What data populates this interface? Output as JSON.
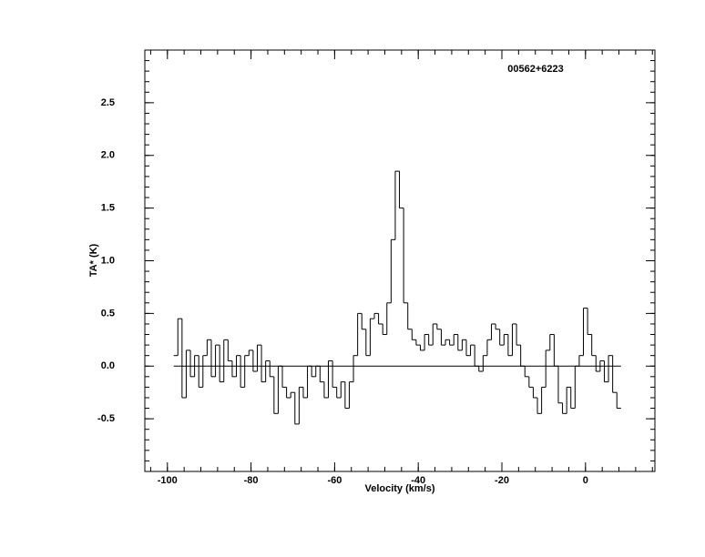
{
  "chart_data": {
    "type": "step",
    "title": "00562+6223",
    "xlabel": "Velocity (km/s)",
    "ylabel": "TA* (K)",
    "x": [
      -98,
      -97,
      -96,
      -95,
      -94,
      -93,
      -92,
      -91,
      -90,
      -89,
      -88,
      -87,
      -86,
      -85,
      -84,
      -83,
      -82,
      -81,
      -80,
      -79,
      -78,
      -77,
      -76,
      -75,
      -74,
      -73,
      -72,
      -71,
      -70,
      -69,
      -68,
      -67,
      -66,
      -65,
      -64,
      -63,
      -62,
      -61,
      -60,
      -59,
      -58,
      -57,
      -56,
      -55,
      -54,
      -53,
      -52,
      -51,
      -50,
      -49,
      -48,
      -47,
      -46,
      -45,
      -44,
      -43,
      -42,
      -41,
      -40,
      -39,
      -38,
      -37,
      -36,
      -35,
      -34,
      -33,
      -32,
      -31,
      -30,
      -29,
      -28,
      -27,
      -26,
      -25,
      -24,
      -23,
      -22,
      -21,
      -20,
      -19,
      -18,
      -17,
      -16,
      -15,
      -14,
      -13,
      -12,
      -11,
      -10,
      -9,
      -8,
      -7,
      -6,
      -5,
      -4,
      -3,
      -2,
      -1,
      0,
      1,
      2,
      3,
      4,
      5,
      6,
      7,
      8
    ],
    "values": [
      0.1,
      0.45,
      -0.3,
      0.15,
      -0.1,
      0.1,
      -0.2,
      0.1,
      0.25,
      -0.1,
      0.2,
      -0.15,
      0.25,
      0.05,
      -0.1,
      0.1,
      -0.2,
      0.1,
      0.15,
      -0.05,
      0.2,
      -0.15,
      0.05,
      -0.1,
      -0.45,
      0.0,
      -0.2,
      -0.3,
      -0.25,
      -0.55,
      -0.2,
      -0.3,
      0.0,
      -0.1,
      0.0,
      -0.15,
      -0.3,
      0.05,
      -0.2,
      -0.3,
      -0.15,
      -0.4,
      -0.15,
      0.1,
      0.5,
      0.35,
      0.1,
      0.45,
      0.5,
      0.4,
      0.3,
      0.6,
      1.2,
      1.85,
      1.5,
      0.6,
      0.35,
      0.25,
      0.2,
      0.15,
      0.3,
      0.2,
      0.4,
      0.35,
      0.2,
      0.25,
      0.2,
      0.3,
      0.15,
      0.25,
      0.1,
      0.2,
      0.0,
      -0.05,
      0.1,
      0.25,
      0.4,
      0.35,
      0.2,
      0.3,
      0.1,
      0.4,
      0.2,
      0.0,
      -0.1,
      -0.2,
      -0.3,
      -0.45,
      -0.2,
      0.15,
      0.3,
      0.0,
      -0.35,
      -0.45,
      -0.2,
      -0.4,
      0.0,
      0.1,
      0.55,
      0.3,
      0.1,
      -0.05,
      0.05,
      -0.15,
      0.1,
      -0.25,
      -0.4
    ],
    "color": "#000000",
    "baseline": 0,
    "xlim": [
      -105.4,
      16.6
    ],
    "ylim": [
      -1.0,
      3.0
    ],
    "xticks": [
      -100,
      -80,
      -60,
      -40,
      -20,
      0
    ],
    "yticks": [
      -0.5,
      {
        "value": 0,
        "label": "0.0"
      },
      0.5,
      {
        "value": 1,
        "label": "1.0"
      },
      1.5,
      {
        "value": 2,
        "label": "2.0"
      },
      2.5
    ]
  }
}
